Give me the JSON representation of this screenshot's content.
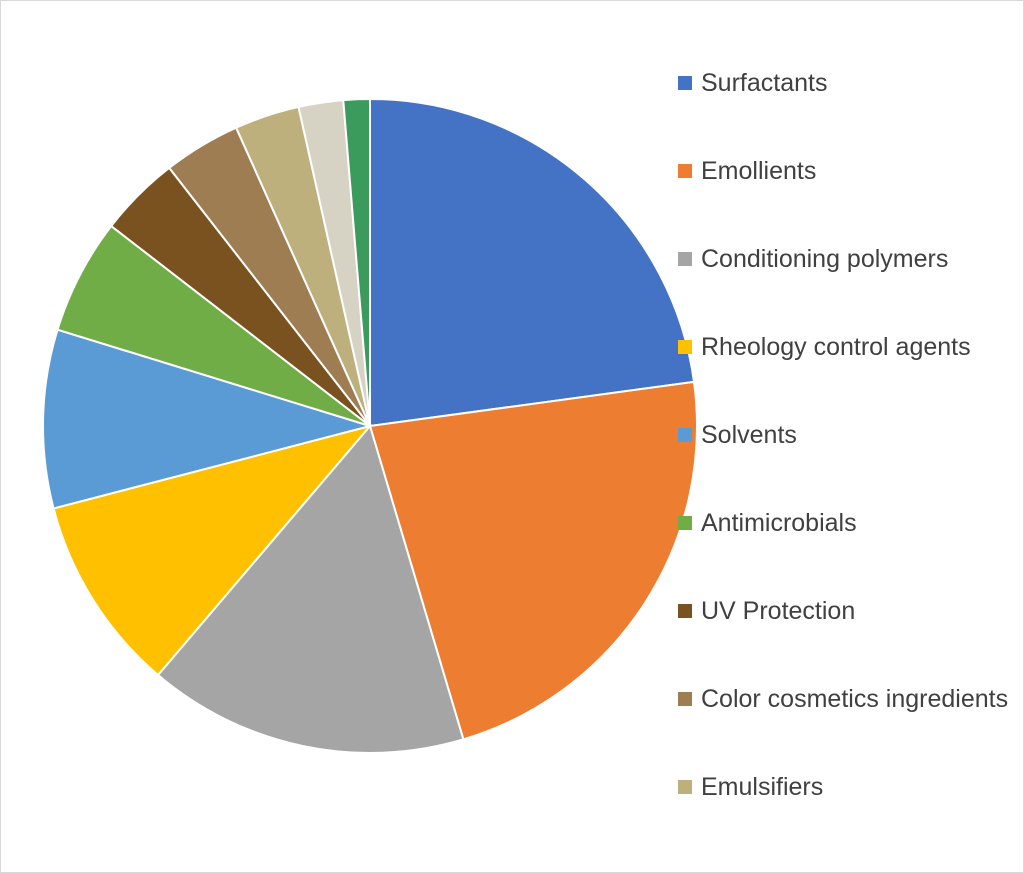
{
  "chart_data": {
    "type": "pie",
    "title": "",
    "legend_position": "right",
    "slices": [
      {
        "label": "Surfactants",
        "value": 22.8,
        "color": "#4472c4"
      },
      {
        "label": "Emollients",
        "value": 22.5,
        "color": "#ed7d31"
      },
      {
        "label": "Conditioning polymers",
        "value": 15.8,
        "color": "#a5a5a5"
      },
      {
        "label": "Rheology control agents",
        "value": 9.7,
        "color": "#ffc000"
      },
      {
        "label": "Solvents",
        "value": 8.8,
        "color": "#5b9bd5"
      },
      {
        "label": "Antimicrobials",
        "value": 5.7,
        "color": "#70ad47"
      },
      {
        "label": "UV Protection",
        "value": 4.0,
        "color": "#7a5220"
      },
      {
        "label": "Color cosmetics ingredients",
        "value": 3.8,
        "color": "#9e7d53"
      },
      {
        "label": "Emulsifiers",
        "value": 3.2,
        "color": "#bdb07c"
      },
      {
        "label": "",
        "value": 2.2,
        "color": "#d6d2c4"
      },
      {
        "label": "",
        "value": 1.3,
        "color": "#3a9b5c"
      }
    ]
  }
}
